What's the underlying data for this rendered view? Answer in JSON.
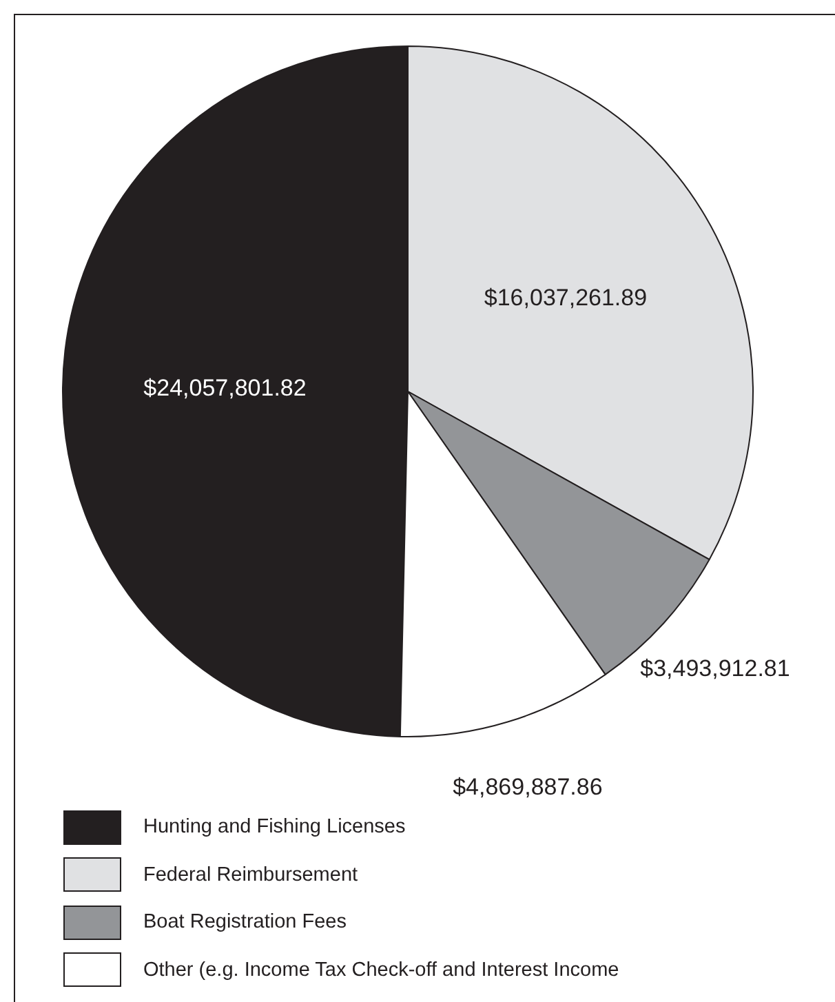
{
  "chart_data": {
    "type": "pie",
    "categories": [
      "Hunting and Fishing Licenses",
      "Federal Reimbursement",
      "Boat Registration Fees",
      "Other (e.g. Income Tax Check-off and Interest Income"
    ],
    "values": [
      24057801.82,
      16037261.89,
      3493912.81,
      4869887.86
    ],
    "colors": [
      "#231f20",
      "#e0e1e3",
      "#939598",
      "#ffffff"
    ],
    "value_labels": [
      "$24,057,801.82",
      "$16,037,261.89",
      "$3,493,912.81",
      "$4,869,887.86"
    ],
    "legend": "bottom left"
  }
}
